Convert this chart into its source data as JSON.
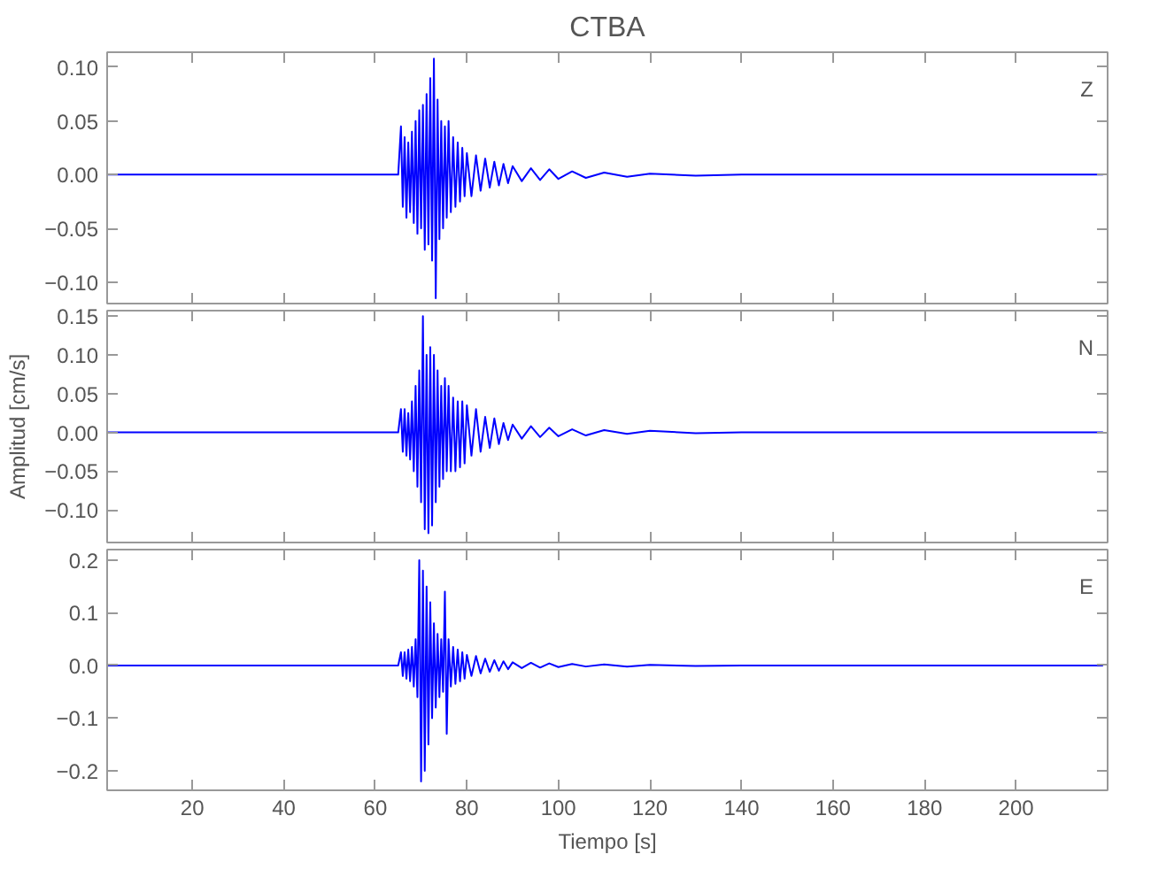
{
  "chart_data": [
    {
      "type": "line",
      "title": "CTBA",
      "annotations": [
        "Z"
      ],
      "tick_labels": "y",
      "xlim": [
        1.4,
        220
      ],
      "xticks": [
        20,
        40,
        60,
        80,
        100,
        120,
        140,
        160,
        180,
        200
      ],
      "ylim": [
        -0.12,
        0.114
      ],
      "yticks": [
        {
          "value": -0.1,
          "label": "−0.10"
        },
        {
          "value": -0.05,
          "label": "−0.05"
        },
        {
          "value": 0,
          "label": "0.00"
        },
        {
          "value": 0.05,
          "label": "0.05"
        },
        {
          "value": 0.1,
          "label": "0.10"
        }
      ],
      "x": [
        1.4,
        30,
        65,
        65.6,
        66,
        66.4,
        66.8,
        67.2,
        67.6,
        68,
        68.4,
        68.8,
        69.2,
        69.6,
        70,
        70.4,
        70.8,
        71.2,
        71.6,
        72,
        72.4,
        72.8,
        73.2,
        73.6,
        74,
        74.4,
        74.8,
        75.2,
        75.6,
        76,
        76.5,
        77,
        77.5,
        78,
        78.5,
        79,
        79.5,
        80,
        81,
        82,
        83,
        84,
        85,
        86,
        87,
        88,
        89,
        90,
        92,
        94,
        96,
        98,
        100,
        103,
        106,
        110,
        115,
        120,
        130,
        140,
        160,
        180,
        200,
        219
      ],
      "series": [
        {
          "color": "#0000ff",
          "values": [
            0,
            0,
            0,
            0.045,
            -0.03,
            0.035,
            -0.04,
            0.03,
            -0.035,
            0.04,
            -0.045,
            0.05,
            -0.055,
            0.06,
            -0.05,
            0.065,
            -0.07,
            0.075,
            -0.065,
            0.09,
            -0.08,
            0.108,
            -0.115,
            0.07,
            -0.06,
            0.05,
            -0.05,
            0.045,
            -0.04,
            0.05,
            -0.035,
            0.035,
            -0.03,
            0.03,
            -0.025,
            0.025,
            -0.02,
            0.02,
            -0.02,
            0.018,
            -0.015,
            0.015,
            -0.012,
            0.012,
            -0.01,
            0.01,
            -0.008,
            0.008,
            -0.006,
            0.006,
            -0.005,
            0.005,
            -0.004,
            0.003,
            -0.003,
            0.002,
            -0.002,
            0.001,
            -0.001,
            0,
            0,
            0,
            0,
            0
          ]
        }
      ]
    },
    {
      "type": "line",
      "ylabel": "Amplitud [cm/s]",
      "annotations": [
        "N"
      ],
      "tick_labels": "y",
      "xlim": [
        1.4,
        220
      ],
      "xticks": [
        20,
        40,
        60,
        80,
        100,
        120,
        140,
        160,
        180,
        200
      ],
      "ylim": [
        -0.142,
        0.157
      ],
      "yticks": [
        {
          "value": -0.1,
          "label": "−0.10"
        },
        {
          "value": -0.05,
          "label": "−0.05"
        },
        {
          "value": 0,
          "label": "0.00"
        },
        {
          "value": 0.05,
          "label": "0.05"
        },
        {
          "value": 0.1,
          "label": "0.10"
        },
        {
          "value": 0.15,
          "label": "0.15"
        }
      ],
      "x": [
        1.4,
        30,
        65,
        65.6,
        66,
        66.4,
        66.8,
        67.2,
        67.6,
        68,
        68.4,
        68.8,
        69.2,
        69.6,
        70,
        70.4,
        70.8,
        71.2,
        71.6,
        72,
        72.4,
        72.8,
        73.2,
        73.6,
        74,
        74.4,
        74.8,
        75.2,
        75.6,
        76,
        76.5,
        77,
        77.5,
        78,
        78.5,
        79,
        79.5,
        80,
        81,
        82,
        83,
        84,
        85,
        86,
        87,
        88,
        89,
        90,
        92,
        94,
        96,
        98,
        100,
        103,
        106,
        110,
        115,
        120,
        130,
        140,
        160,
        180,
        200,
        219
      ],
      "series": [
        {
          "color": "#0000ff",
          "values": [
            0,
            0,
            0,
            0.03,
            -0.025,
            0.03,
            -0.03,
            0.025,
            -0.035,
            0.04,
            -0.05,
            0.06,
            -0.07,
            0.08,
            -0.09,
            0.15,
            -0.125,
            0.1,
            -0.13,
            0.11,
            -0.12,
            0.1,
            -0.09,
            0.08,
            -0.07,
            0.06,
            -0.06,
            0.07,
            -0.05,
            0.06,
            -0.05,
            0.045,
            -0.05,
            0.04,
            -0.045,
            0.04,
            -0.04,
            0.035,
            -0.03,
            0.03,
            -0.025,
            0.02,
            -0.02,
            0.018,
            -0.015,
            0.012,
            -0.01,
            0.01,
            -0.008,
            0.008,
            -0.006,
            0.006,
            -0.005,
            0.004,
            -0.004,
            0.003,
            -0.002,
            0.002,
            -0.001,
            0,
            0,
            0,
            0,
            0
          ]
        }
      ]
    },
    {
      "type": "line",
      "xlabel": "Tiempo [s]",
      "annotations": [
        "E"
      ],
      "xlim": [
        1.4,
        220
      ],
      "xticks": [
        20,
        40,
        60,
        80,
        100,
        120,
        140,
        160,
        180,
        200
      ],
      "ylim": [
        -0.237,
        0.22
      ],
      "yticks": [
        {
          "value": -0.2,
          "label": "−0.2"
        },
        {
          "value": -0.1,
          "label": "−0.1"
        },
        {
          "value": 0,
          "label": "0.0"
        },
        0.1,
        0.2
      ],
      "x": [
        1.4,
        30,
        65,
        65.6,
        66,
        66.4,
        66.8,
        67.2,
        67.6,
        68,
        68.4,
        68.8,
        69.2,
        69.6,
        70,
        70.4,
        70.8,
        71.2,
        71.6,
        72,
        72.4,
        72.8,
        73.2,
        73.6,
        74,
        74.4,
        74.8,
        75.2,
        75.6,
        76,
        76.5,
        77,
        77.5,
        78,
        78.5,
        79,
        79.5,
        80,
        81,
        82,
        83,
        84,
        85,
        86,
        87,
        88,
        89,
        90,
        92,
        94,
        96,
        98,
        100,
        103,
        106,
        110,
        115,
        120,
        130,
        140,
        160,
        180,
        200,
        219
      ],
      "series": [
        {
          "color": "#0000ff",
          "values": [
            0,
            0,
            0,
            0.025,
            -0.02,
            0.025,
            -0.025,
            0.03,
            -0.03,
            0.035,
            -0.04,
            0.05,
            -0.06,
            0.2,
            -0.22,
            0.18,
            -0.2,
            0.15,
            -0.15,
            0.12,
            -0.1,
            0.08,
            -0.08,
            0.06,
            -0.06,
            0.05,
            -0.05,
            0.14,
            -0.13,
            0.05,
            -0.04,
            0.035,
            -0.035,
            0.03,
            -0.03,
            0.025,
            -0.025,
            0.02,
            -0.02,
            0.018,
            -0.015,
            0.013,
            -0.012,
            0.01,
            -0.01,
            0.008,
            -0.007,
            0.006,
            -0.005,
            0.005,
            -0.004,
            0.004,
            -0.003,
            0.003,
            -0.002,
            0.002,
            -0.002,
            0.001,
            -0.001,
            0,
            0,
            0,
            0,
            0
          ]
        }
      ]
    }
  ]
}
